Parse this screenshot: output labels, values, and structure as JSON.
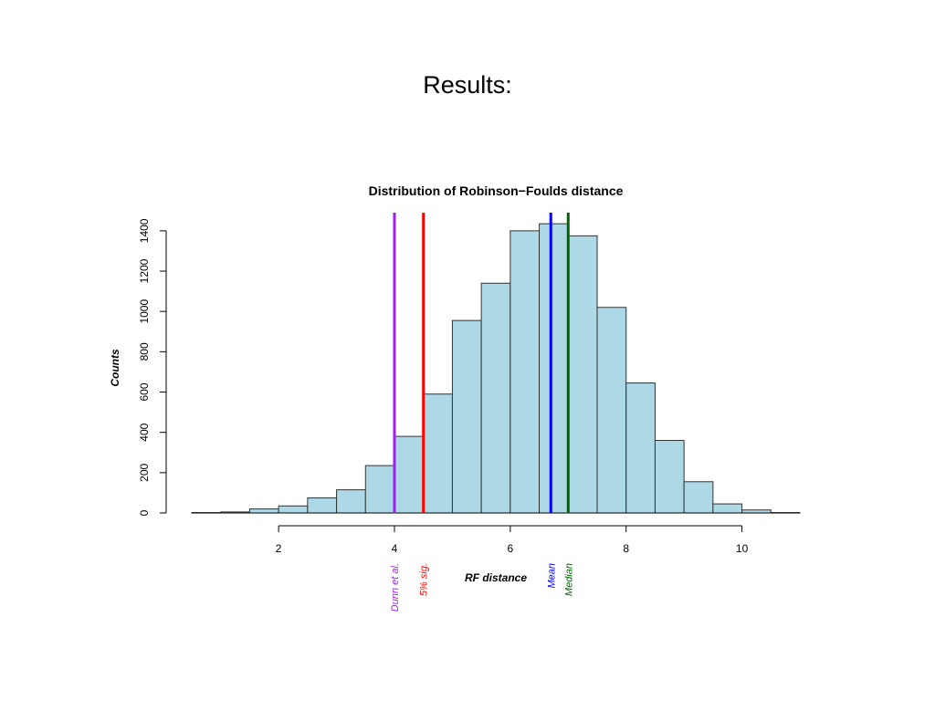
{
  "slide": {
    "title": "Results:"
  },
  "chart_data": {
    "type": "bar",
    "title": "Distribution of Robinson−Foulds distance",
    "xlabel": "RF distance",
    "ylabel": "Counts",
    "bins": [
      {
        "x0": 0.5,
        "x1": 1.0,
        "count": 2
      },
      {
        "x0": 1.0,
        "x1": 1.5,
        "count": 5
      },
      {
        "x0": 1.5,
        "x1": 2.0,
        "count": 20
      },
      {
        "x0": 2.0,
        "x1": 2.5,
        "count": 35
      },
      {
        "x0": 2.5,
        "x1": 3.0,
        "count": 75
      },
      {
        "x0": 3.0,
        "x1": 3.5,
        "count": 115
      },
      {
        "x0": 3.5,
        "x1": 4.0,
        "count": 235
      },
      {
        "x0": 4.0,
        "x1": 4.5,
        "count": 380
      },
      {
        "x0": 4.5,
        "x1": 5.0,
        "count": 590
      },
      {
        "x0": 5.0,
        "x1": 5.5,
        "count": 955
      },
      {
        "x0": 5.5,
        "x1": 6.0,
        "count": 1140
      },
      {
        "x0": 6.0,
        "x1": 6.5,
        "count": 1400
      },
      {
        "x0": 6.5,
        "x1": 7.0,
        "count": 1435
      },
      {
        "x0": 7.0,
        "x1": 7.5,
        "count": 1375
      },
      {
        "x0": 7.5,
        "x1": 8.0,
        "count": 1020
      },
      {
        "x0": 8.0,
        "x1": 8.5,
        "count": 645
      },
      {
        "x0": 8.5,
        "x1": 9.0,
        "count": 360
      },
      {
        "x0": 9.0,
        "x1": 9.5,
        "count": 155
      },
      {
        "x0": 9.5,
        "x1": 10.0,
        "count": 45
      },
      {
        "x0": 10.0,
        "x1": 10.5,
        "count": 15
      },
      {
        "x0": 10.5,
        "x1": 11.0,
        "count": 2
      }
    ],
    "xlim": [
      0.5,
      11.0
    ],
    "ylim": [
      0,
      1490
    ],
    "xticks": [
      2,
      4,
      6,
      8,
      10
    ],
    "yticks": [
      0,
      200,
      400,
      600,
      800,
      1000,
      1200,
      1400
    ],
    "bar_color": "#add8e6",
    "vlines": [
      {
        "label": "Dunn et al.",
        "x": 4.0,
        "color": "#a020f0"
      },
      {
        "label": "5% sig.",
        "x": 4.5,
        "color": "#ff0000"
      },
      {
        "label": "Mean",
        "x": 6.7,
        "color": "#0000ff"
      },
      {
        "label": "Median",
        "x": 7.0,
        "color": "#006400"
      }
    ]
  }
}
